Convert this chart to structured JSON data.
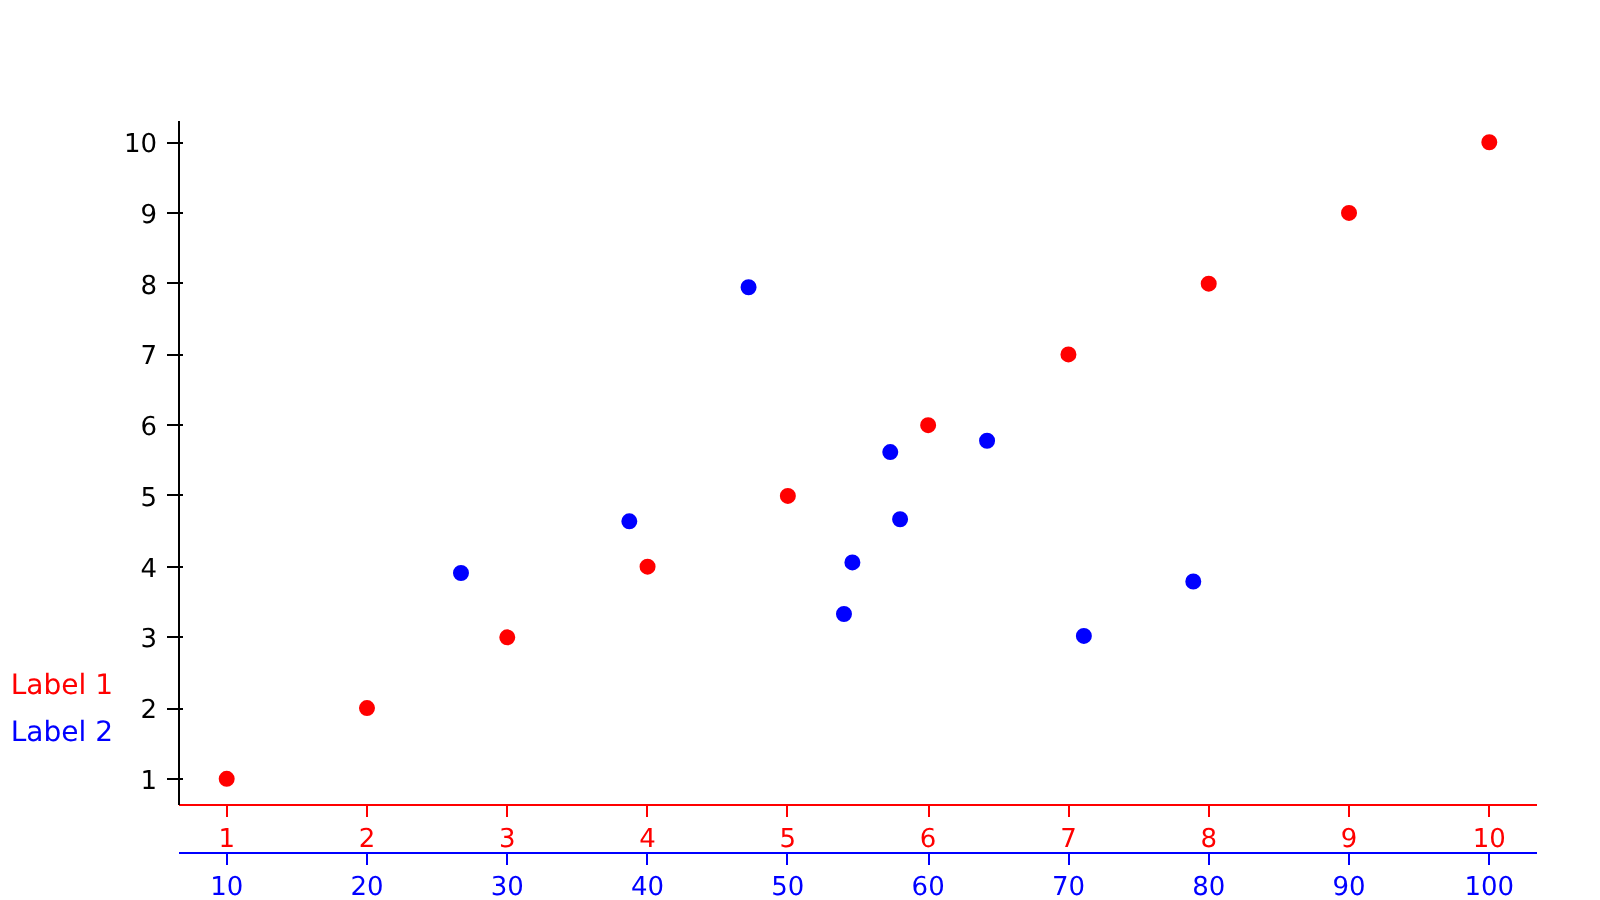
{
  "chart_data": {
    "type": "scatter",
    "xlabel": "Label 1",
    "x2label": "Label 2",
    "xlim": [
      0.66,
      10.34
    ],
    "xticks": [
      1,
      2,
      3,
      4,
      5,
      6,
      7,
      8,
      9,
      10
    ],
    "x2lim": [
      6.6,
      103.4
    ],
    "x2ticks": [
      10,
      20,
      30,
      40,
      50,
      60,
      70,
      80,
      90,
      100
    ],
    "ylim": [
      0.63,
      10.3
    ],
    "yticks": [
      1,
      2,
      3,
      4,
      5,
      6,
      7,
      8,
      9,
      10
    ],
    "grid": false,
    "marker": "circle",
    "series": [
      {
        "color": "#ff0000",
        "x": [
          1,
          2,
          3,
          4,
          5,
          6,
          7,
          8,
          9,
          10
        ],
        "values": [
          1,
          2,
          3,
          4,
          5,
          6,
          7,
          8,
          9,
          10
        ]
      },
      {
        "color": "#0000ff",
        "axis": "x2",
        "x": [
          26.7,
          38.7,
          47.2,
          54.6,
          54.0,
          57.3,
          58.0,
          64.2,
          71.1,
          78.9
        ],
        "values": [
          3.91,
          4.64,
          7.95,
          4.06,
          3.33,
          5.62,
          4.67,
          5.78,
          3.02,
          3.79
        ]
      }
    ]
  }
}
